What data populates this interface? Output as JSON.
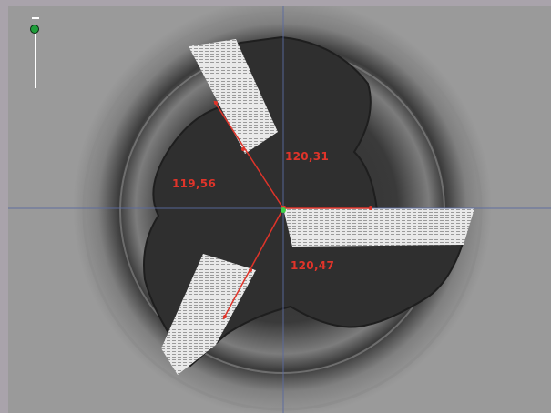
{
  "viewer": {
    "angles": [
      {
        "name": "angle-top-right",
        "label": "120,31"
      },
      {
        "name": "angle-left",
        "label": "119,56"
      },
      {
        "name": "angle-bottom-right",
        "label": "120,47"
      }
    ],
    "zoom_control": {
      "icon": "zoom-slider-icon",
      "accent_color": "#1f9e3a"
    },
    "measurement_color": "#e0342a",
    "crosshair_color": "#5a6aa0"
  }
}
